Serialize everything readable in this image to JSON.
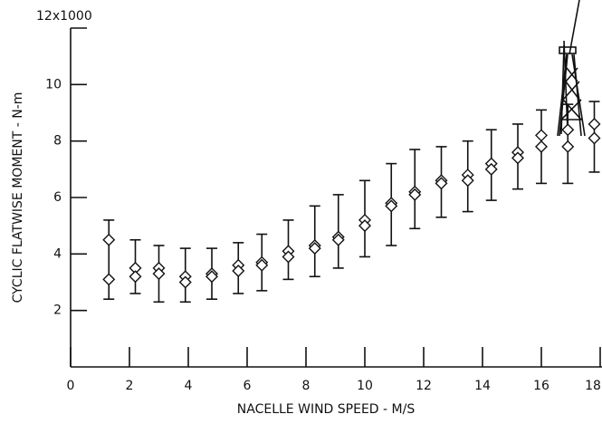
{
  "chart_data": {
    "type": "scatter",
    "x_label": "NACELLE WIND SPEED - M/S",
    "y_label": "CYCLIC FLATWISE MOMENT - N-m",
    "x": [
      1.3,
      2.2,
      3.0,
      3.9,
      4.8,
      5.7,
      6.5,
      7.4,
      8.3,
      9.1,
      10.0,
      10.9,
      11.7,
      12.6,
      13.5,
      14.3,
      15.2,
      16.0,
      16.9,
      17.8
    ],
    "series": [
      {
        "color": "#111111",
        "values": [
          4.5,
          3.5,
          3.5,
          3.2,
          3.3,
          3.6,
          3.7,
          4.1,
          4.3,
          4.6,
          5.2,
          5.8,
          6.2,
          6.6,
          6.8,
          7.2,
          7.6,
          8.2,
          8.4,
          8.6
        ]
      },
      {
        "color": "#111111",
        "values": [
          3.1,
          3.2,
          3.3,
          3.0,
          3.2,
          3.4,
          3.6,
          3.9,
          4.2,
          4.5,
          5.0,
          5.7,
          6.1,
          6.5,
          6.6,
          7.0,
          7.4,
          7.8,
          7.8,
          8.1
        ]
      }
    ],
    "range_low": [
      2.4,
      2.6,
      2.3,
      2.3,
      2.4,
      2.6,
      2.7,
      3.1,
      3.2,
      3.5,
      3.9,
      4.3,
      4.9,
      5.3,
      5.5,
      5.9,
      6.3,
      6.5,
      6.5,
      6.9
    ],
    "range_high": [
      5.2,
      4.5,
      4.3,
      4.2,
      4.2,
      4.4,
      4.7,
      5.2,
      5.7,
      6.1,
      6.6,
      7.2,
      7.7,
      7.8,
      8.0,
      8.4,
      8.6,
      9.1,
      9.3,
      9.4
    ],
    "xlim": [
      0,
      18
    ],
    "xticks": [
      0,
      2,
      4,
      6,
      8,
      10,
      12,
      14,
      16,
      18
    ],
    "ylim": [
      0,
      12
    ],
    "yticks": [
      2,
      4,
      6,
      8,
      10,
      {
        "value": 12,
        "label": "12x1000"
      }
    ]
  }
}
